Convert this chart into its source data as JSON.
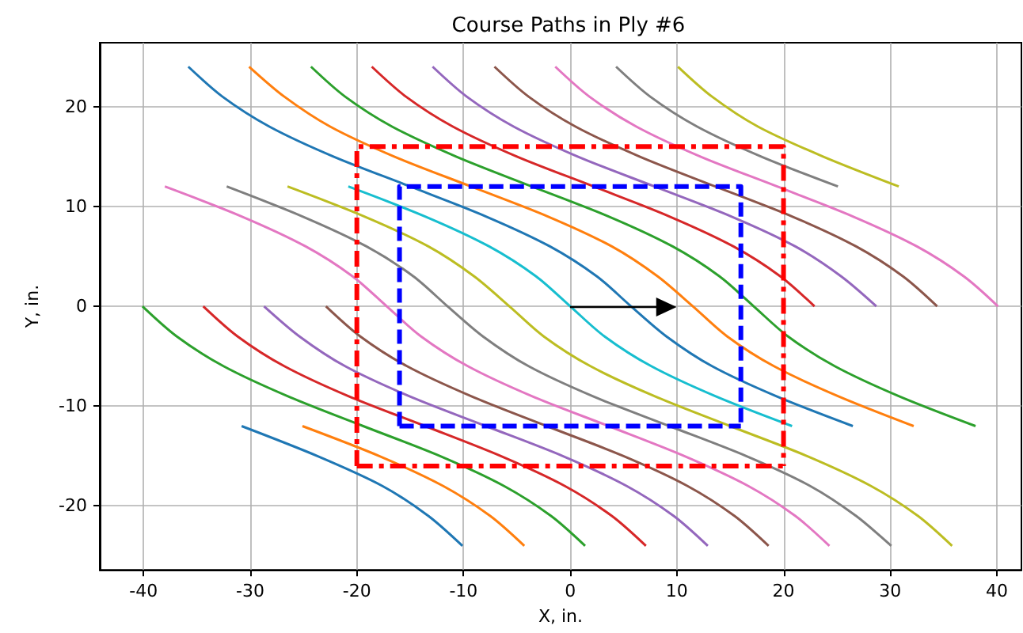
{
  "chart_data": {
    "type": "line",
    "title": "Course Paths in Ply #6",
    "xlabel": "X, in.",
    "ylabel": "Y, in.",
    "xlim": [
      -44.1,
      42.3
    ],
    "ylim": [
      -26.4,
      26.4
    ],
    "xticks": [
      -40,
      -30,
      -20,
      -10,
      0,
      10,
      20,
      30,
      40
    ],
    "yticks": [
      -20,
      -10,
      0,
      10,
      20
    ],
    "grid": true,
    "series": [
      {
        "color": "#1f77b4",
        "x": [
          -30.8,
          -23.7,
          -17.6,
          -13.3,
          -10.1
        ],
        "values": [
          -12,
          -15,
          -18,
          -21,
          -24
        ]
      },
      {
        "color": "#ff7f0e",
        "x": [
          -25.1,
          -17.9,
          -11.9,
          -7.5,
          -4.3
        ],
        "values": [
          -12,
          -15,
          -18,
          -21,
          -24
        ]
      },
      {
        "color": "#2ca02c",
        "x": [
          -40.1,
          -36.9,
          -32.5,
          -26.5,
          -19.4,
          -12.2,
          -6.2,
          -1.8,
          1.4
        ],
        "values": [
          0,
          -3,
          -6,
          -9,
          -12,
          -15,
          -18,
          -21,
          -24
        ]
      },
      {
        "color": "#d62728",
        "x": [
          -34.4,
          -31.2,
          -26.8,
          -20.8,
          -13.6,
          -6.5,
          -0.5,
          3.9,
          7.1
        ],
        "values": [
          0,
          -3,
          -6,
          -9,
          -12,
          -15,
          -18,
          -21,
          -24
        ]
      },
      {
        "color": "#9467bd",
        "x": [
          -28.7,
          -25.4,
          -21.1,
          -15.1,
          -7.9,
          -0.7,
          5.3,
          9.7,
          12.9
        ],
        "values": [
          0,
          -3,
          -6,
          -9,
          -12,
          -15,
          -18,
          -21,
          -24
        ]
      },
      {
        "color": "#8c564b",
        "x": [
          -22.9,
          -19.7,
          -15.3,
          -9.3,
          -2.2,
          5.0,
          11.0,
          15.4,
          18.6
        ],
        "values": [
          0,
          -3,
          -6,
          -9,
          -12,
          -15,
          -18,
          -21,
          -24
        ]
      },
      {
        "color": "#e377c2",
        "x": [
          -38.0,
          -30.8,
          -24.8,
          -20.4,
          -17.2,
          -14.0,
          -9.6,
          -3.6,
          3.6,
          10.7,
          16.7,
          21.1,
          24.3
        ],
        "values": [
          12,
          9,
          6,
          3,
          0,
          -3,
          -6,
          -9,
          -12,
          -15,
          -18,
          -21,
          -24
        ]
      },
      {
        "color": "#7f7f7f",
        "x": [
          -32.2,
          -25.1,
          -19.1,
          -14.7,
          -11.5,
          -8.2,
          -3.9,
          2.1,
          9.3,
          16.5,
          22.5,
          26.8,
          30.1
        ],
        "values": [
          12,
          9,
          6,
          3,
          0,
          -3,
          -6,
          -9,
          -12,
          -15,
          -18,
          -21,
          -24
        ]
      },
      {
        "color": "#bcbd22",
        "x": [
          -26.5,
          -19.3,
          -13.3,
          -9.0,
          -5.7,
          -2.5,
          1.9,
          7.9,
          15.0,
          22.2,
          28.2,
          32.6,
          35.8
        ],
        "values": [
          12,
          9,
          6,
          3,
          0,
          -3,
          -6,
          -9,
          -12,
          -15,
          -18,
          -21,
          -24
        ]
      },
      {
        "color": "#17becf",
        "x": [
          -20.8,
          -13.6,
          -7.6,
          -3.2,
          0,
          3.2,
          7.6,
          13.6,
          20.8
        ],
        "values": [
          12,
          9,
          6,
          3,
          0,
          -3,
          -6,
          -9,
          -12
        ]
      },
      {
        "color": "#1f77b4",
        "x": [
          -35.8,
          -32.6,
          -28.2,
          -22.2,
          -15.0,
          -7.9,
          -1.9,
          2.5,
          5.7,
          9.0,
          13.3,
          19.3,
          26.5
        ],
        "values": [
          24,
          21,
          18,
          15,
          12,
          9,
          6,
          3,
          0,
          -3,
          -6,
          -9,
          -12
        ]
      },
      {
        "color": "#ff7f0e",
        "x": [
          -30.1,
          -26.8,
          -22.5,
          -16.5,
          -9.3,
          -2.1,
          3.9,
          8.2,
          11.5,
          14.7,
          19.1,
          25.1,
          32.2
        ],
        "values": [
          24,
          21,
          18,
          15,
          12,
          9,
          6,
          3,
          0,
          -3,
          -6,
          -9,
          -12
        ]
      },
      {
        "color": "#2ca02c",
        "x": [
          -24.3,
          -21.1,
          -16.7,
          -10.7,
          -3.6,
          3.6,
          9.6,
          14.0,
          17.2,
          20.4,
          24.8,
          30.8,
          38.0
        ],
        "values": [
          24,
          21,
          18,
          15,
          12,
          9,
          6,
          3,
          0,
          -3,
          -6,
          -9,
          -12
        ]
      },
      {
        "color": "#d62728",
        "x": [
          -18.6,
          -15.4,
          -11.0,
          -5.0,
          2.2,
          9.3,
          15.3,
          19.7,
          22.9
        ],
        "values": [
          24,
          21,
          18,
          15,
          12,
          9,
          6,
          3,
          0
        ]
      },
      {
        "color": "#9467bd",
        "x": [
          -12.9,
          -9.7,
          -5.3,
          0.7,
          7.9,
          15.1,
          21.1,
          25.4,
          28.7
        ],
        "values": [
          24,
          21,
          18,
          15,
          12,
          9,
          6,
          3,
          0
        ]
      },
      {
        "color": "#8c564b",
        "x": [
          -7.1,
          -3.9,
          0.5,
          6.5,
          13.6,
          20.8,
          26.8,
          31.2,
          34.4
        ],
        "values": [
          24,
          21,
          18,
          15,
          12,
          9,
          6,
          3,
          0
        ]
      },
      {
        "color": "#e377c2",
        "x": [
          -1.4,
          1.8,
          6.2,
          12.2,
          19.4,
          26.5,
          32.5,
          36.9,
          40.1
        ],
        "values": [
          24,
          21,
          18,
          15,
          12,
          9,
          6,
          3,
          0
        ]
      },
      {
        "color": "#7f7f7f",
        "x": [
          4.3,
          7.5,
          11.9,
          17.9,
          25.1
        ],
        "values": [
          24,
          21,
          18,
          15,
          12
        ]
      },
      {
        "color": "#bcbd22",
        "x": [
          10.1,
          13.3,
          17.6,
          23.7,
          30.8
        ],
        "values": [
          24,
          21,
          18,
          15,
          12
        ]
      },
      {
        "color": "#ff0000",
        "line_style": "dashdot",
        "x": [
          -20,
          -20,
          20,
          20
        ],
        "values": [
          -16,
          16,
          16,
          -16
        ]
      },
      {
        "color": "#ff0000",
        "line_style": "dashdot",
        "x": [
          -20,
          20
        ],
        "values": [
          -16,
          -16
        ]
      },
      {
        "color": "#0000ff",
        "line_style": "dashed",
        "x": [
          -16,
          -16,
          16,
          16
        ],
        "values": [
          -12,
          12,
          12,
          -12
        ]
      },
      {
        "color": "#0000ff",
        "line_style": "dashed",
        "x": [
          -16,
          16
        ],
        "values": [
          -12,
          -12
        ]
      }
    ]
  }
}
